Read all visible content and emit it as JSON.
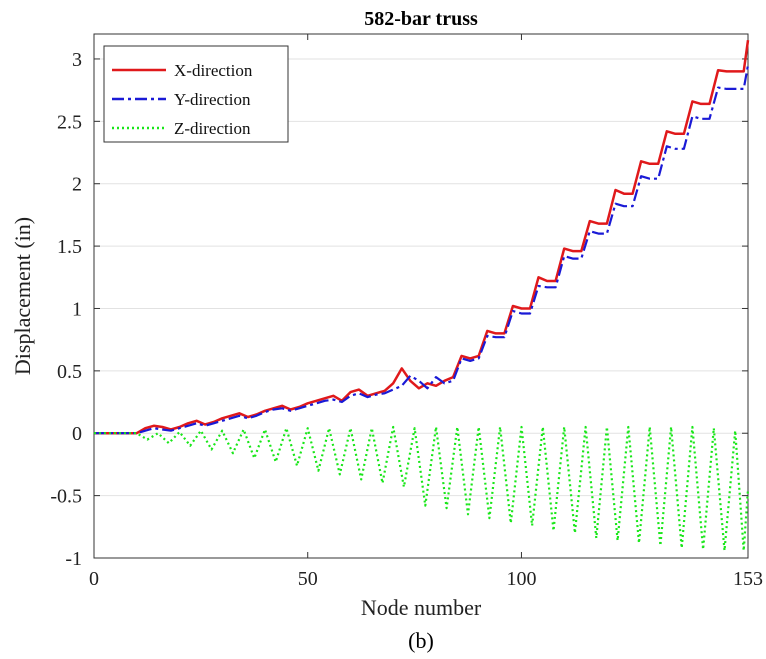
{
  "caption": "(b)",
  "chart_data": {
    "type": "line",
    "title": "582-bar truss",
    "xlabel": "Node number",
    "ylabel": "Displacement (in)",
    "xlim": [
      0,
      153
    ],
    "ylim": [
      -1,
      3.2
    ],
    "x_ticks": [
      0,
      50,
      100,
      153
    ],
    "x_tick_labels": [
      "0",
      "50",
      "100",
      "153"
    ],
    "y_ticks": [
      -1,
      -0.5,
      0,
      0.5,
      1,
      1.5,
      2,
      2.5,
      3
    ],
    "y_tick_labels": [
      "-1",
      "-0.5",
      "0",
      "0.5",
      "1",
      "1.5",
      "2",
      "2.5",
      "3"
    ],
    "grid": "horizontal",
    "legend_position": "top-left",
    "series": [
      {
        "name": "X-direction",
        "color": "#e0191b",
        "style": "solid",
        "x": [
          0,
          10,
          12,
          14,
          16,
          18,
          20,
          22,
          24,
          26,
          28,
          30,
          32,
          34,
          36,
          38,
          40,
          42,
          44,
          46,
          48,
          50,
          52,
          54,
          56,
          58,
          60,
          62,
          64,
          66,
          68,
          70,
          72,
          74,
          76,
          78,
          80,
          82,
          84,
          86,
          88,
          90,
          92,
          94,
          96,
          98,
          100,
          102,
          104,
          106,
          108,
          110,
          112,
          114,
          116,
          118,
          120,
          122,
          124,
          126,
          128,
          130,
          132,
          134,
          136,
          138,
          140,
          142,
          144,
          146,
          148,
          150,
          152,
          153
        ],
        "values": [
          0,
          0,
          0.04,
          0.06,
          0.05,
          0.03,
          0.05,
          0.08,
          0.1,
          0.07,
          0.09,
          0.12,
          0.14,
          0.16,
          0.13,
          0.15,
          0.18,
          0.2,
          0.22,
          0.19,
          0.21,
          0.24,
          0.26,
          0.28,
          0.3,
          0.26,
          0.33,
          0.35,
          0.3,
          0.32,
          0.34,
          0.4,
          0.52,
          0.42,
          0.36,
          0.4,
          0.38,
          0.42,
          0.45,
          0.62,
          0.6,
          0.62,
          0.82,
          0.8,
          0.8,
          1.02,
          1.0,
          1.0,
          1.25,
          1.22,
          1.22,
          1.48,
          1.46,
          1.46,
          1.7,
          1.68,
          1.68,
          1.95,
          1.92,
          1.92,
          2.18,
          2.16,
          2.16,
          2.42,
          2.4,
          2.4,
          2.66,
          2.64,
          2.64,
          2.91,
          2.9,
          2.9,
          2.9,
          3.15
        ]
      },
      {
        "name": "Y-direction",
        "color": "#1a1ad6",
        "style": "dashdot",
        "x": [
          0,
          10,
          12,
          14,
          16,
          18,
          20,
          22,
          24,
          26,
          28,
          30,
          32,
          34,
          36,
          38,
          40,
          42,
          44,
          46,
          48,
          50,
          52,
          54,
          56,
          58,
          60,
          62,
          64,
          66,
          68,
          70,
          72,
          74,
          76,
          78,
          80,
          82,
          84,
          86,
          88,
          90,
          92,
          94,
          96,
          98,
          100,
          102,
          104,
          106,
          108,
          110,
          112,
          114,
          116,
          118,
          120,
          122,
          124,
          126,
          128,
          130,
          132,
          134,
          136,
          138,
          140,
          142,
          144,
          146,
          148,
          150,
          152,
          153
        ],
        "values": [
          0,
          0,
          0.02,
          0.04,
          0.03,
          0.02,
          0.04,
          0.06,
          0.08,
          0.06,
          0.08,
          0.1,
          0.12,
          0.14,
          0.12,
          0.14,
          0.17,
          0.19,
          0.2,
          0.18,
          0.2,
          0.22,
          0.24,
          0.26,
          0.27,
          0.25,
          0.3,
          0.32,
          0.29,
          0.31,
          0.32,
          0.35,
          0.38,
          0.46,
          0.42,
          0.36,
          0.45,
          0.4,
          0.42,
          0.6,
          0.58,
          0.6,
          0.78,
          0.77,
          0.77,
          0.98,
          0.96,
          0.96,
          1.18,
          1.17,
          1.17,
          1.42,
          1.4,
          1.4,
          1.62,
          1.6,
          1.6,
          1.84,
          1.82,
          1.82,
          2.06,
          2.04,
          2.04,
          2.3,
          2.28,
          2.28,
          2.54,
          2.52,
          2.52,
          2.77,
          2.76,
          2.76,
          2.76,
          2.95
        ]
      },
      {
        "name": "Z-direction",
        "color": "#19e619",
        "style": "dotted",
        "x": [
          0,
          10,
          12.5,
          15,
          17.5,
          20,
          22.5,
          25,
          27.5,
          30,
          32.5,
          35,
          37.5,
          40,
          42.5,
          45,
          47.5,
          50,
          52.5,
          55,
          57.5,
          60,
          62.5,
          65,
          67.5,
          70,
          72.5,
          75,
          77.5,
          80,
          82.5,
          85,
          87.5,
          90,
          92.5,
          95,
          97.5,
          100,
          102.5,
          105,
          107.5,
          110,
          112.5,
          115,
          117.5,
          120,
          122.5,
          125,
          127.5,
          130,
          132.5,
          135,
          137.5,
          140,
          142.5,
          145,
          147.5,
          150,
          152,
          153
        ],
        "values": [
          0,
          0,
          -0.05,
          0.0,
          -0.08,
          0.01,
          -0.1,
          0.02,
          -0.13,
          0.02,
          -0.16,
          0.03,
          -0.2,
          0.03,
          -0.23,
          0.04,
          -0.26,
          0.04,
          -0.3,
          0.04,
          -0.33,
          0.04,
          -0.37,
          0.04,
          -0.4,
          0.05,
          -0.43,
          0.04,
          -0.58,
          0.05,
          -0.6,
          0.05,
          -0.65,
          0.05,
          -0.68,
          0.05,
          -0.72,
          0.05,
          -0.74,
          0.05,
          -0.78,
          0.05,
          -0.8,
          0.05,
          -0.84,
          0.05,
          -0.86,
          0.05,
          -0.88,
          0.05,
          -0.9,
          0.05,
          -0.92,
          0.05,
          -0.93,
          0.04,
          -0.94,
          0.02,
          -0.94,
          -0.45
        ]
      }
    ]
  }
}
